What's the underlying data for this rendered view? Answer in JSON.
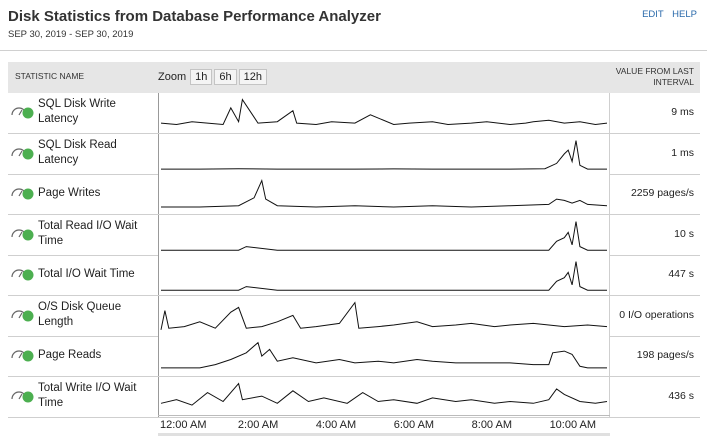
{
  "header": {
    "title": "Disk Statistics from Database Performance Analyzer",
    "date_range": "SEP 30, 2019 - SEP 30, 2019",
    "edit_label": "EDIT",
    "help_label": "HELP"
  },
  "table": {
    "col_name": "STATISTIC NAME",
    "zoom_label": "Zoom",
    "zoom_options": [
      "1h",
      "6h",
      "12h"
    ],
    "col_value_line1": "VALUE FROM LAST",
    "col_value_line2": "INTERVAL"
  },
  "colors": {
    "status": "#4caf50",
    "spark": "#111111",
    "link": "#2a6aab"
  },
  "icons": {
    "row_icon": "gauge-icon",
    "status_icon": "status-ok-icon"
  },
  "rows": [
    {
      "label_line1": "SQL Disk Write",
      "label_line2": "Latency",
      "value": "9 ms"
    },
    {
      "label_line1": "SQL Disk Read",
      "label_line2": "Latency",
      "value": "1 ms"
    },
    {
      "label_line1": "Page Writes",
      "label_line2": "",
      "value": "2259 pages/s"
    },
    {
      "label_line1": "Total Read I/O Wait",
      "label_line2": "Time",
      "value": "10 s"
    },
    {
      "label_line1": "Total I/O Wait Time",
      "label_line2": "",
      "value": "447 s"
    },
    {
      "label_line1": "O/S Disk Queue",
      "label_line2": "Length",
      "value": "0 I/O operations"
    },
    {
      "label_line1": "Page Reads",
      "label_line2": "",
      "value": "198 pages/s"
    },
    {
      "label_line1": "Total Write I/O Wait",
      "label_line2": "Time",
      "value": "436 s"
    }
  ],
  "time_axis": {
    "ticks": [
      "12:00 AM",
      "2:00 AM",
      "4:00 AM",
      "6:00 AM",
      "8:00 AM",
      "10:00 AM"
    ],
    "tick_hours": [
      0,
      2,
      4,
      6,
      8,
      10
    ],
    "range_hours": [
      0,
      11.5
    ]
  },
  "chart_data": [
    {
      "type": "line",
      "x_unit": "hour of day",
      "points": [
        [
          0,
          5
        ],
        [
          0.4,
          4
        ],
        [
          0.8,
          6
        ],
        [
          1.2,
          5
        ],
        [
          1.6,
          4
        ],
        [
          1.8,
          16
        ],
        [
          2.0,
          6
        ],
        [
          2.1,
          22
        ],
        [
          2.5,
          5
        ],
        [
          3.0,
          6
        ],
        [
          3.4,
          14
        ],
        [
          3.5,
          5
        ],
        [
          4.0,
          4
        ],
        [
          4.4,
          6
        ],
        [
          5.0,
          5
        ],
        [
          5.4,
          11
        ],
        [
          6.0,
          4
        ],
        [
          6.4,
          5
        ],
        [
          7.0,
          6
        ],
        [
          7.4,
          4
        ],
        [
          8.0,
          5
        ],
        [
          8.4,
          6
        ],
        [
          9.0,
          4
        ],
        [
          9.4,
          5
        ],
        [
          9.6,
          6
        ],
        [
          10.0,
          7
        ],
        [
          10.4,
          5
        ],
        [
          10.8,
          6
        ],
        [
          11.2,
          4
        ],
        [
          11.5,
          5
        ]
      ]
    },
    {
      "type": "line",
      "x_unit": "hour of day",
      "points": [
        [
          0,
          1
        ],
        [
          1.0,
          1
        ],
        [
          2.0,
          1.2
        ],
        [
          3.0,
          1
        ],
        [
          4.0,
          1
        ],
        [
          5.0,
          1
        ],
        [
          6.0,
          1.1
        ],
        [
          7.0,
          1
        ],
        [
          8.0,
          1
        ],
        [
          9.0,
          1
        ],
        [
          9.9,
          1.2
        ],
        [
          10.2,
          4
        ],
        [
          10.4,
          9
        ],
        [
          10.5,
          11
        ],
        [
          10.6,
          5
        ],
        [
          10.7,
          16
        ],
        [
          10.8,
          3
        ],
        [
          11.0,
          1
        ],
        [
          11.5,
          1
        ]
      ]
    },
    {
      "type": "line",
      "x_unit": "hour of day",
      "points": [
        [
          0,
          3
        ],
        [
          1.0,
          3
        ],
        [
          2.0,
          4
        ],
        [
          2.4,
          10
        ],
        [
          2.6,
          23
        ],
        [
          2.7,
          9
        ],
        [
          3.0,
          4
        ],
        [
          4.0,
          3
        ],
        [
          5.0,
          4
        ],
        [
          6.0,
          3
        ],
        [
          7.0,
          4
        ],
        [
          8.0,
          3
        ],
        [
          9.0,
          4
        ],
        [
          10.0,
          5
        ],
        [
          10.2,
          9
        ],
        [
          10.4,
          8
        ],
        [
          10.6,
          6
        ],
        [
          10.8,
          8
        ],
        [
          11.0,
          5
        ],
        [
          11.5,
          4
        ]
      ]
    },
    {
      "type": "line",
      "x_unit": "hour of day",
      "points": [
        [
          0,
          1
        ],
        [
          1.0,
          1
        ],
        [
          2.0,
          1
        ],
        [
          2.2,
          3
        ],
        [
          3.0,
          1
        ],
        [
          4.0,
          1
        ],
        [
          5.0,
          1
        ],
        [
          6.0,
          1
        ],
        [
          7.0,
          1
        ],
        [
          8.0,
          1
        ],
        [
          9.0,
          1
        ],
        [
          10.0,
          1
        ],
        [
          10.2,
          6
        ],
        [
          10.4,
          8
        ],
        [
          10.5,
          11
        ],
        [
          10.6,
          4
        ],
        [
          10.7,
          17
        ],
        [
          10.8,
          3
        ],
        [
          11.0,
          1
        ],
        [
          11.5,
          1
        ]
      ]
    },
    {
      "type": "line",
      "x_unit": "hour of day",
      "points": [
        [
          0,
          1
        ],
        [
          1.0,
          1
        ],
        [
          2.0,
          1
        ],
        [
          2.2,
          3
        ],
        [
          3.0,
          1
        ],
        [
          4.0,
          1
        ],
        [
          5.0,
          1
        ],
        [
          6.0,
          1
        ],
        [
          7.0,
          1
        ],
        [
          8.0,
          1
        ],
        [
          9.0,
          1
        ],
        [
          10.0,
          1
        ],
        [
          10.2,
          6
        ],
        [
          10.4,
          8
        ],
        [
          10.5,
          11
        ],
        [
          10.6,
          4
        ],
        [
          10.7,
          17
        ],
        [
          10.8,
          3
        ],
        [
          11.0,
          1
        ],
        [
          11.5,
          1
        ]
      ]
    },
    {
      "type": "line",
      "x_unit": "hour of day",
      "points": [
        [
          0,
          2
        ],
        [
          0.1,
          14
        ],
        [
          0.2,
          3
        ],
        [
          0.6,
          4
        ],
        [
          1.0,
          7
        ],
        [
          1.4,
          3
        ],
        [
          1.8,
          13
        ],
        [
          2.0,
          16
        ],
        [
          2.2,
          3
        ],
        [
          2.6,
          4
        ],
        [
          3.0,
          7
        ],
        [
          3.4,
          11
        ],
        [
          3.6,
          3
        ],
        [
          4.0,
          4
        ],
        [
          4.6,
          6
        ],
        [
          5.0,
          19
        ],
        [
          5.1,
          3
        ],
        [
          5.6,
          4
        ],
        [
          6.0,
          5
        ],
        [
          6.6,
          7
        ],
        [
          7.0,
          4
        ],
        [
          7.6,
          5
        ],
        [
          8.0,
          6
        ],
        [
          8.6,
          4
        ],
        [
          9.0,
          5
        ],
        [
          9.6,
          6
        ],
        [
          10.0,
          5
        ],
        [
          10.4,
          4
        ],
        [
          11.0,
          5
        ],
        [
          11.5,
          4
        ]
      ]
    },
    {
      "type": "line",
      "x_unit": "hour of day",
      "points": [
        [
          0,
          3
        ],
        [
          1.0,
          3
        ],
        [
          1.4,
          5
        ],
        [
          1.8,
          8
        ],
        [
          2.2,
          12
        ],
        [
          2.5,
          18
        ],
        [
          2.6,
          10
        ],
        [
          2.8,
          14
        ],
        [
          3.0,
          7
        ],
        [
          3.4,
          9
        ],
        [
          4.0,
          6
        ],
        [
          4.6,
          8
        ],
        [
          5.0,
          6
        ],
        [
          5.6,
          7
        ],
        [
          6.0,
          6
        ],
        [
          6.6,
          8
        ],
        [
          7.0,
          7
        ],
        [
          7.6,
          6
        ],
        [
          8.0,
          6
        ],
        [
          8.6,
          6
        ],
        [
          9.0,
          6
        ],
        [
          9.6,
          5
        ],
        [
          10.0,
          5
        ],
        [
          10.1,
          12
        ],
        [
          10.4,
          13
        ],
        [
          10.6,
          11
        ],
        [
          10.8,
          4
        ],
        [
          11.0,
          3
        ],
        [
          11.5,
          3
        ]
      ]
    },
    {
      "type": "line",
      "x_unit": "hour of day",
      "points": [
        [
          0,
          6
        ],
        [
          0.4,
          8
        ],
        [
          0.8,
          5
        ],
        [
          1.2,
          12
        ],
        [
          1.6,
          7
        ],
        [
          2.0,
          17
        ],
        [
          2.1,
          8
        ],
        [
          2.6,
          10
        ],
        [
          3.0,
          6
        ],
        [
          3.4,
          13
        ],
        [
          3.8,
          7
        ],
        [
          4.2,
          9
        ],
        [
          4.8,
          6
        ],
        [
          5.2,
          12
        ],
        [
          5.6,
          7
        ],
        [
          6.0,
          8
        ],
        [
          6.6,
          6
        ],
        [
          7.0,
          9
        ],
        [
          7.6,
          7
        ],
        [
          8.0,
          8
        ],
        [
          8.6,
          6
        ],
        [
          9.0,
          7
        ],
        [
          9.6,
          6
        ],
        [
          10.0,
          8
        ],
        [
          10.2,
          14
        ],
        [
          10.4,
          11
        ],
        [
          10.8,
          7
        ],
        [
          11.2,
          6
        ],
        [
          11.5,
          7
        ]
      ]
    }
  ]
}
